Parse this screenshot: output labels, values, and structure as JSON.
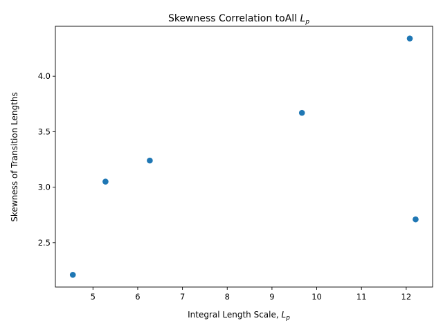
{
  "chart_data": {
    "type": "scatter",
    "title_prefix": "Skewness Correlation toAll ",
    "title_symbol": "L",
    "title_symbol_sub": "p",
    "xlabel_prefix": "Integral Length Scale, ",
    "xlabel_symbol": "L",
    "xlabel_symbol_sub": "p",
    "ylabel": "Skewness of Transition Lengths",
    "xlim": [
      4.16,
      12.59
    ],
    "ylim": [
      2.1,
      4.45
    ],
    "xticks": [
      5,
      6,
      7,
      8,
      9,
      10,
      11,
      12
    ],
    "xtick_labels": [
      "5",
      "6",
      "7",
      "8",
      "9",
      "10",
      "11",
      "12"
    ],
    "yticks": [
      2.5,
      3.0,
      3.5,
      4.0
    ],
    "ytick_labels": [
      "2.5",
      "3.0",
      "3.5",
      "4.0"
    ],
    "grid": false,
    "marker_color": "#1f77b4",
    "points": [
      {
        "x": 4.55,
        "y": 2.21
      },
      {
        "x": 5.28,
        "y": 3.05
      },
      {
        "x": 6.27,
        "y": 3.24
      },
      {
        "x": 9.67,
        "y": 3.67
      },
      {
        "x": 12.08,
        "y": 4.34
      },
      {
        "x": 12.21,
        "y": 2.71
      }
    ]
  }
}
